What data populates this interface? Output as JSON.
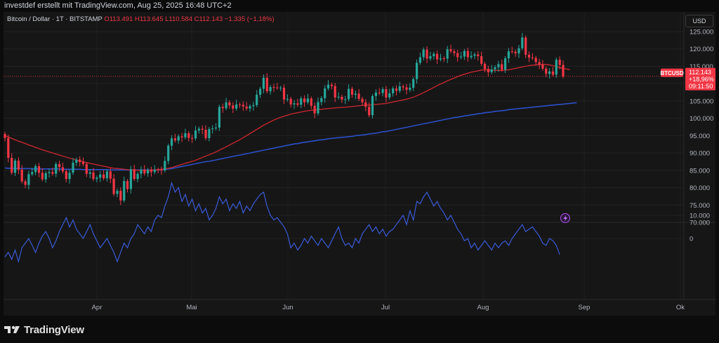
{
  "header": {
    "caption": "investdef erstellt mit TradingView.com, Aug 25, 2025 16:48 UTC+2"
  },
  "legend": {
    "symbol": "Bitcoin / Dollar · 1T · BITSTAMP",
    "ohlc": "O113.491  H113.645  L110.584  C112.143  −1.335 (−1,18%)"
  },
  "currency_button": "USD",
  "price_badge": {
    "ticker": "BTCUSD",
    "price": "112.143",
    "change": "+18,96%",
    "countdown": "09:11:50"
  },
  "footer": {
    "brand": "TradingView"
  },
  "colors": {
    "up": "#26a69a",
    "down": "#f23645",
    "ma_fast": "#c2262e",
    "ma_slow": "#2b4fc9",
    "oscillator": "#3a5bd9",
    "badge": "#f23645"
  },
  "chart_data": [
    {
      "type": "candlestick",
      "x_axis": {
        "tick_labels": [
          "Apr",
          "Mai",
          "Jun",
          "Jul",
          "Aug",
          "Sep",
          "Ok"
        ]
      },
      "y_axis": {
        "range": [
          70000,
          125000
        ],
        "tick_labels": [
          "125.000",
          "120.000",
          "115.000",
          "110.000",
          "105.000",
          "100.000",
          "95.000",
          "90.000",
          "85.000",
          "80.000",
          "75.000",
          "70.000"
        ],
        "tick_values": [
          125000,
          120000,
          115000,
          110000,
          105000,
          100000,
          95000,
          90000,
          85000,
          80000,
          75000,
          70000
        ]
      },
      "series": [
        {
          "name": "BTCUSD",
          "kind": "candles",
          "close": [
            94.3,
            88.6,
            84.3,
            87.8,
            85.2,
            81.8,
            80.8,
            83.9,
            84.5,
            86.2,
            84.3,
            82.4,
            84.2,
            84.5,
            84.0,
            86.8,
            85.9,
            84.7,
            82.5,
            84.3,
            87.2,
            88.1,
            87.4,
            86.8,
            84.0,
            84.4,
            82.5,
            82.9,
            83.8,
            82.7,
            84.7,
            82.6,
            78.2,
            79.1,
            76.3,
            81.9,
            79.6,
            85.3,
            82.5,
            84.0,
            85.2,
            84.1,
            85.1,
            84.5,
            85.2,
            85.1,
            85.0,
            87.7,
            92.1,
            94.2,
            93.6,
            94.8,
            94.5,
            95.7,
            94.3,
            94.2,
            96.5,
            97.0,
            96.7,
            94.3,
            96.9,
            97.1,
            97.3,
            103.3,
            102.9,
            104.6,
            103.7,
            102.8,
            104.0,
            103.9,
            103.4,
            102.8,
            103.5,
            103.8,
            106.8,
            108.5,
            111.7,
            107.8,
            109.0,
            108.9,
            108.8,
            108.8,
            105.4,
            105.6,
            104.0,
            104.3,
            103.9,
            105.7,
            104.6,
            105.7,
            103.6,
            101.4,
            104.7,
            105.8,
            108.6,
            109.7,
            109.3,
            106.0,
            106.2,
            105.4,
            105.5,
            108.5,
            106.8,
            107.1,
            105.6,
            104.6,
            103.3,
            100.9,
            106.4,
            107.4,
            107.3,
            108.4,
            106.0,
            107.2,
            108.6,
            107.9,
            109.2,
            108.9,
            108.2,
            108.8,
            111.3,
            116.0,
            117.6,
            119.8,
            117.2,
            117.9,
            118.6,
            117.0,
            117.3,
            117.2,
            119.9,
            119.3,
            118.8,
            117.6,
            117.8,
            119.4,
            117.6,
            118.0,
            118.4,
            117.9,
            115.7,
            114.2,
            113.3,
            114.1,
            114.7,
            115.6,
            114.0,
            117.3,
            119.3,
            119.2,
            118.7,
            120.2,
            123.3,
            118.3,
            117.5,
            117.4,
            116.2,
            115.5,
            114.3,
            112.8,
            113.5,
            112.6,
            116.9,
            115.4,
            112.1
          ],
          "close_units": "thousand USD (estimated from chart)"
        },
        {
          "name": "moving-average-fast",
          "kind": "line",
          "values": [
            95.0,
            94.6,
            94.2,
            93.8,
            93.4,
            93.1,
            92.7,
            92.3,
            92.0,
            91.6,
            91.3,
            90.9,
            90.6,
            90.3,
            90.0,
            89.7,
            89.4,
            89.1,
            88.8,
            88.5,
            88.3,
            88.0,
            87.7,
            87.5,
            87.2,
            87.0,
            86.8,
            86.6,
            86.4,
            86.2,
            86.0,
            85.8,
            85.6,
            85.5,
            85.4,
            85.3,
            85.2,
            85.1,
            85.1,
            85.0,
            85.0,
            85.0,
            85.0,
            85.1,
            85.1,
            85.2,
            85.3,
            85.4,
            85.6,
            85.8,
            86.1,
            86.4,
            86.7,
            87.0,
            87.3,
            87.6,
            87.9,
            88.3,
            88.7,
            89.1,
            89.5,
            89.9,
            90.3,
            90.8,
            91.3,
            91.8,
            92.3,
            92.8,
            93.3,
            93.8,
            94.4,
            95.0,
            95.6,
            96.2,
            96.8,
            97.4,
            98.0,
            98.5,
            99.0,
            99.5,
            99.9,
            100.3,
            100.6,
            100.9,
            101.2,
            101.4,
            101.6,
            101.8,
            102.0,
            102.2,
            102.3,
            102.4,
            102.5,
            102.6,
            102.7,
            102.8,
            102.9,
            103.0,
            103.1,
            103.1,
            103.2,
            103.3,
            103.4,
            103.5,
            103.6,
            103.7,
            103.8,
            103.8,
            103.9,
            104.0,
            104.1,
            104.2,
            104.3,
            104.5,
            104.7,
            104.9,
            105.1,
            105.3,
            105.5,
            105.8,
            106.1,
            106.5,
            106.9,
            107.4,
            107.9,
            108.4,
            108.9,
            109.4,
            109.9,
            110.3,
            110.8,
            111.2,
            111.6,
            112.0,
            112.4,
            112.7,
            113.0,
            113.3,
            113.5,
            113.7,
            113.9,
            114.0,
            114.0,
            113.9,
            113.8,
            113.8,
            113.8,
            113.9,
            114.0,
            114.2,
            114.4,
            114.6,
            114.8,
            115.0,
            115.2,
            115.3,
            115.4,
            115.5,
            115.5,
            115.5,
            115.4,
            115.2,
            114.9,
            114.6,
            114.4,
            114.2,
            114.0
          ]
        },
        {
          "name": "moving-average-slow",
          "kind": "line",
          "values": [
            85.7,
            85.6,
            85.6,
            85.6,
            85.5,
            85.5,
            85.5,
            85.5,
            85.4,
            85.4,
            85.4,
            85.4,
            85.4,
            85.4,
            85.4,
            85.4,
            85.4,
            85.3,
            85.3,
            85.3,
            85.3,
            85.3,
            85.3,
            85.2,
            85.2,
            85.2,
            85.2,
            85.2,
            85.2,
            85.2,
            85.2,
            85.1,
            85.1,
            85.1,
            85.1,
            85.1,
            85.1,
            85.1,
            85.1,
            85.1,
            85.1,
            85.1,
            85.1,
            85.1,
            85.1,
            85.1,
            85.2,
            85.3,
            85.4,
            85.5,
            85.7,
            85.9,
            86.1,
            86.3,
            86.5,
            86.7,
            86.9,
            87.1,
            87.3,
            87.5,
            87.6,
            87.8,
            88.0,
            88.2,
            88.4,
            88.6,
            88.8,
            89.0,
            89.2,
            89.4,
            89.6,
            89.8,
            90.0,
            90.2,
            90.4,
            90.6,
            90.8,
            91.0,
            91.2,
            91.4,
            91.6,
            91.8,
            92.0,
            92.2,
            92.4,
            92.6,
            92.7,
            92.9,
            93.1,
            93.2,
            93.4,
            93.5,
            93.7,
            93.8,
            93.9,
            94.1,
            94.2,
            94.3,
            94.4,
            94.5,
            94.6,
            94.7,
            94.8,
            95.0,
            95.1,
            95.2,
            95.3,
            95.5,
            95.6,
            95.7,
            95.9,
            96.1,
            96.2,
            96.4,
            96.6,
            96.8,
            97.0,
            97.2,
            97.4,
            97.6,
            97.8,
            98.0,
            98.2,
            98.4,
            98.6,
            98.8,
            99.0,
            99.2,
            99.4,
            99.6,
            99.8,
            100.0,
            100.2,
            100.3,
            100.5,
            100.7,
            100.8,
            101.0,
            101.1,
            101.3,
            101.4,
            101.6,
            101.7,
            101.8,
            102.0,
            102.1,
            102.2,
            102.3,
            102.5,
            102.6,
            102.7,
            102.8,
            102.9,
            103.0,
            103.1,
            103.2,
            103.3,
            103.4,
            103.5,
            103.6,
            103.7,
            103.8,
            103.9,
            104.0,
            104.1,
            104.2,
            104.3,
            104.4,
            104.5
          ]
        }
      ]
    },
    {
      "type": "line",
      "y_axis": {
        "tick_labels": [
          "10.000",
          "0"
        ],
        "tick_values": [
          10000,
          0
        ]
      },
      "series": [
        {
          "name": "oscillator",
          "values": [
            -8,
            -6,
            -9,
            -5,
            -10,
            -4,
            -2,
            0,
            -3,
            -6,
            -2,
            1,
            3,
            0,
            -4,
            -1,
            3,
            6,
            9,
            5,
            8,
            4,
            2,
            0,
            3,
            6,
            2,
            -1,
            -4,
            -2,
            0,
            -3,
            -6,
            -10,
            -6,
            -2,
            -4,
            0,
            2,
            6,
            4,
            2,
            5,
            3,
            8,
            10,
            9,
            14,
            18,
            24,
            20,
            22,
            16,
            19,
            14,
            17,
            12,
            15,
            11,
            13,
            8,
            10,
            13,
            18,
            15,
            17,
            12,
            15,
            13,
            16,
            11,
            14,
            12,
            15,
            17,
            19,
            20,
            14,
            10,
            8,
            9,
            7,
            5,
            2,
            -4,
            -2,
            -5,
            -3,
            0,
            -2,
            1,
            -1,
            -3,
            0,
            -2,
            -4,
            -1,
            2,
            5,
            0,
            -3,
            -2,
            -4,
            0,
            -2,
            2,
            4,
            6,
            3,
            5,
            2,
            4,
            1,
            3,
            4,
            6,
            8,
            10,
            6,
            12,
            8,
            16,
            15,
            18,
            20,
            17,
            14,
            16,
            13,
            11,
            8,
            10,
            7,
            4,
            2,
            -1,
            0,
            -4,
            -2,
            -5,
            -3,
            -1,
            -3,
            -5,
            -2,
            -4,
            -2,
            -1,
            -3,
            0,
            2,
            4,
            6,
            3,
            4,
            5,
            3,
            1,
            -2,
            -3,
            0,
            -1,
            -3,
            -7
          ]
        }
      ]
    }
  ]
}
